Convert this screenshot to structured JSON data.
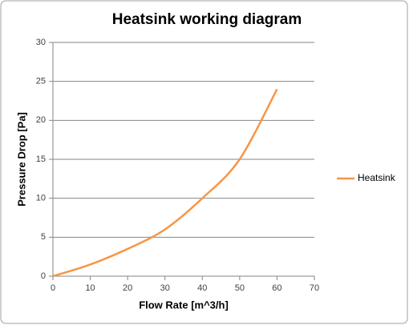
{
  "chart_data": {
    "type": "line",
    "title": "Heatsink working diagram",
    "xlabel": "Flow Rate [m^3/h]",
    "ylabel": "Pressure Drop [Pa]",
    "x": [
      0,
      10,
      20,
      30,
      40,
      50,
      60
    ],
    "series": [
      {
        "name": "Heatsink",
        "color": "#f79646",
        "values": [
          0,
          1.5,
          3.5,
          6,
          10,
          15,
          24
        ]
      }
    ],
    "xlim": [
      0,
      70
    ],
    "xticks": [
      0,
      10,
      20,
      30,
      40,
      50,
      60,
      70
    ],
    "ylim": [
      0,
      30
    ],
    "yticks": [
      0,
      5,
      10,
      15,
      20,
      25,
      30
    ],
    "grid": true,
    "legend": "right",
    "smooth": true
  }
}
